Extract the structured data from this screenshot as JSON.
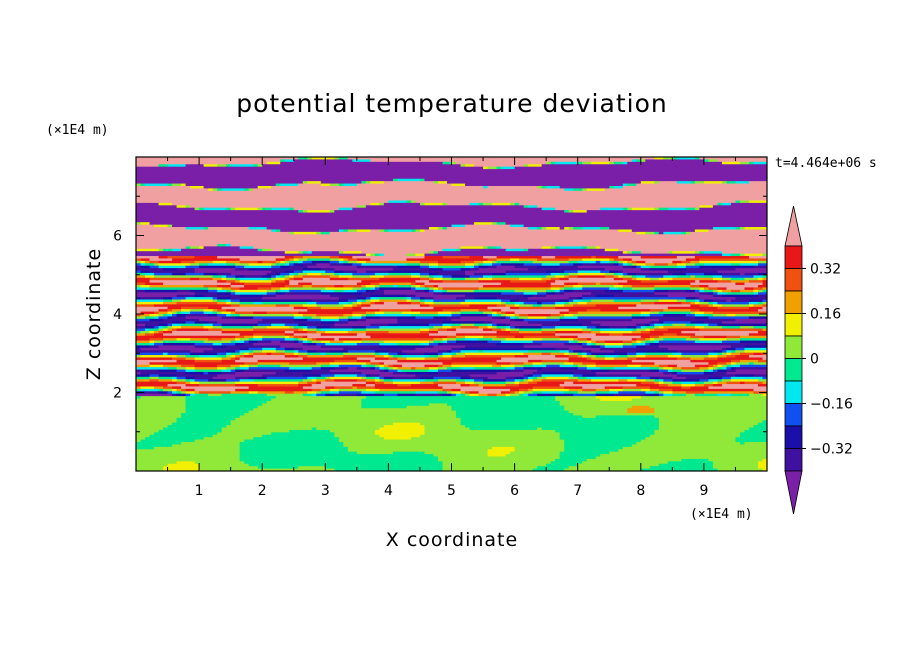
{
  "chart_data": {
    "type": "heatmap",
    "title": "potential temperature deviation",
    "xlabel": "X coordinate",
    "ylabel": "Z coordinate",
    "x_unit": "(×1E4 m)",
    "y_unit": "(×1E4 m)",
    "time_label": "t=4.464e+06 s",
    "xlim": [
      0,
      10
    ],
    "ylim": [
      0,
      8
    ],
    "x_ticks": [
      1,
      2,
      3,
      4,
      5,
      6,
      7,
      8,
      9
    ],
    "y_ticks": [
      2,
      4,
      6
    ],
    "colorbar": {
      "labels": [
        "0.32",
        "0.16",
        "0",
        "-0.16",
        "-0.32"
      ],
      "label_values": [
        0.32,
        0.16,
        0,
        -0.16,
        -0.32
      ],
      "levels": [
        -0.4,
        -0.32,
        -0.24,
        -0.16,
        -0.08,
        0,
        0.08,
        0.16,
        0.24,
        0.32,
        0.4
      ],
      "colors": [
        "#7a1fa8",
        "#4010a0",
        "#1a0fa8",
        "#1050f0",
        "#00e8f0",
        "#00e890",
        "#90e838",
        "#f0f000",
        "#f0a000",
        "#f05010",
        "#e81818",
        "#f0a0a0"
      ]
    },
    "layers": [
      {
        "z_range": [
          0,
          1.9
        ],
        "pattern": "green-yellowgreen, weak (-0.08 to 0.08)"
      },
      {
        "z_range": [
          1.9,
          5.5
        ],
        "pattern": "strongly banded, full color range"
      },
      {
        "z_range": [
          5.5,
          8
        ],
        "pattern": "alternating purple/pink bands (-0.4 / +0.4)"
      }
    ]
  }
}
